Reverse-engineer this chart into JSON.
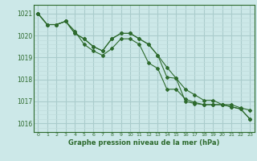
{
  "title": "Graphe pression niveau de la mer (hPa)",
  "background_color": "#cce8e8",
  "line_color": "#2d6a2d",
  "grid_color_major": "#aacccc",
  "grid_color_minor": "#c0dcdc",
  "x_ticks": [
    0,
    1,
    2,
    3,
    4,
    5,
    6,
    7,
    8,
    9,
    10,
    11,
    12,
    13,
    14,
    15,
    16,
    17,
    18,
    19,
    20,
    21,
    22,
    23
  ],
  "ylim": [
    1015.6,
    1021.4
  ],
  "y_ticks": [
    1016,
    1017,
    1018,
    1019,
    1020,
    1021
  ],
  "series": [
    [
      1021.0,
      1020.5,
      1020.5,
      1020.65,
      1020.1,
      1019.85,
      1019.5,
      1019.3,
      1019.85,
      1020.1,
      1020.1,
      1019.85,
      1019.6,
      1019.1,
      1018.55,
      1018.05,
      1017.55,
      1017.3,
      1017.05,
      1017.05,
      1016.85,
      1016.85,
      1016.7,
      1016.6
    ],
    [
      1021.0,
      1020.5,
      1020.5,
      1020.65,
      1020.2,
      1019.6,
      1019.3,
      1019.1,
      1019.4,
      1019.85,
      1019.85,
      1019.6,
      1018.75,
      1018.5,
      1017.55,
      1017.55,
      1017.1,
      1016.95,
      1016.85,
      1016.85,
      1016.85,
      1016.75,
      1016.65,
      1016.2
    ],
    [
      1021.0,
      1020.5,
      1020.5,
      1020.65,
      1020.1,
      1019.85,
      1019.5,
      1019.3,
      1019.85,
      1020.1,
      1020.1,
      1019.85,
      1019.6,
      1019.1,
      1018.1,
      1018.05,
      1017.0,
      1016.9,
      1016.85,
      1016.85,
      1016.85,
      1016.75,
      1016.65,
      1016.2
    ]
  ]
}
